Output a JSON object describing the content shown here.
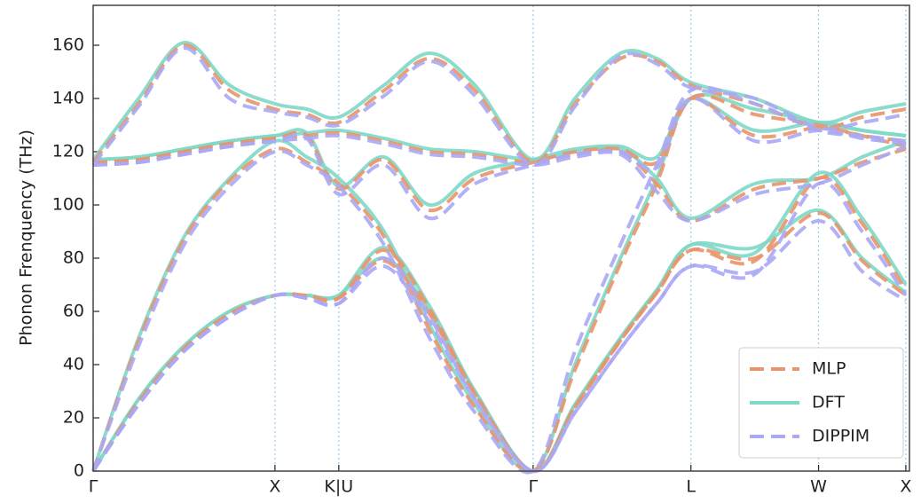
{
  "chart_data": {
    "type": "line",
    "ylabel": "Phonon Frenquency (THz)",
    "x": [
      0,
      0.25,
      0.5,
      0.75,
      1.0,
      1.175,
      1.351,
      1.6,
      1.85,
      2.1,
      2.42,
      2.65,
      2.9,
      3.1,
      3.288,
      3.64,
      3.99,
      4.23,
      4.47
    ],
    "xlim": [
      0,
      4.49
    ],
    "xticks": [
      {
        "value": 0,
        "label": "Γ"
      },
      {
        "value": 1.0,
        "label": "X"
      },
      {
        "value": 1.351,
        "label": "K|U"
      },
      {
        "value": 2.42,
        "label": "Γ"
      },
      {
        "value": 3.288,
        "label": "L"
      },
      {
        "value": 3.99,
        "label": "W"
      },
      {
        "value": 4.47,
        "label": "X"
      }
    ],
    "ylim": [
      0,
      175
    ],
    "yticks": [
      0,
      20,
      40,
      60,
      80,
      100,
      120,
      140,
      160
    ],
    "legend": "lower right",
    "series": [
      {
        "name": "MLP",
        "color": "#e8956a",
        "dash": true,
        "branches": [
          [
            0,
            26,
            46,
            59,
            66,
            66,
            65,
            79,
            59,
            29,
            0,
            24,
            49,
            67,
            83,
            80,
            97,
            79,
            66
          ],
          [
            0,
            26,
            46,
            59,
            66,
            66,
            65,
            83,
            61,
            29,
            0,
            24,
            49,
            67,
            83,
            79,
            110,
            93,
            68
          ],
          [
            0,
            49,
            87,
            109,
            121,
            116,
            108,
            88,
            53,
            24,
            0,
            38,
            78,
            108,
            140,
            134,
            130,
            126,
            122
          ],
          [
            116,
            117,
            120,
            123,
            125,
            126,
            127,
            124,
            120,
            119,
            116,
            119,
            120,
            108,
            94,
            106,
            110,
            116,
            121
          ],
          [
            116,
            138,
            160,
            143,
            136,
            134,
            131,
            143,
            155,
            143,
            116,
            138,
            155,
            154,
            145,
            138,
            129,
            133,
            136
          ],
          [
            116,
            117,
            120,
            123,
            125,
            126,
            106,
            117,
            98,
            110,
            116,
            120,
            121,
            116,
            140,
            126,
            129,
            126,
            124
          ]
        ]
      },
      {
        "name": "DFT",
        "color": "#7fd8c8",
        "dash": false,
        "branches": [
          [
            0,
            27,
            47,
            60,
            66,
            66,
            66,
            80,
            60,
            30,
            0,
            25,
            50,
            68,
            85,
            84,
            98,
            80,
            67
          ],
          [
            0,
            27,
            47,
            60,
            66,
            66,
            66,
            84,
            62,
            30,
            0,
            25,
            50,
            68,
            85,
            82,
            112,
            95,
            70
          ],
          [
            0,
            50,
            88,
            110,
            124,
            118,
            110,
            90,
            55,
            25,
            0,
            40,
            80,
            110,
            140,
            136,
            131,
            128,
            126
          ],
          [
            117,
            118,
            121,
            124,
            126,
            127,
            128,
            125,
            121,
            120,
            117,
            120,
            121,
            110,
            95,
            108,
            110,
            118,
            124
          ],
          [
            117,
            140,
            161,
            145,
            138,
            136,
            133,
            145,
            157,
            145,
            117,
            140,
            157,
            155,
            146,
            140,
            131,
            135,
            138
          ],
          [
            117,
            118,
            121,
            124,
            126,
            127,
            107,
            118,
            100,
            112,
            117,
            121,
            122,
            118,
            140,
            128,
            131,
            128,
            126
          ]
        ]
      },
      {
        "name": "DIPPIM",
        "color": "#aaa8f5",
        "dash": true,
        "branches": [
          [
            0,
            25,
            45,
            58,
            66,
            65,
            63,
            77,
            56,
            27,
            0,
            22,
            46,
            63,
            77,
            75,
            94,
            75,
            64
          ],
          [
            0,
            25,
            45,
            58,
            66,
            65,
            63,
            80,
            58,
            27,
            0,
            22,
            46,
            63,
            77,
            74,
            108,
            90,
            66
          ],
          [
            0,
            47,
            85,
            107,
            120,
            115,
            107,
            85,
            50,
            22,
            0,
            45,
            85,
            115,
            143,
            138,
            128,
            126,
            124
          ],
          [
            115,
            116,
            119,
            122,
            124,
            125,
            126,
            123,
            119,
            118,
            115,
            118,
            119,
            105,
            94,
            104,
            108,
            115,
            122
          ],
          [
            115,
            137,
            159,
            140,
            135,
            133,
            130,
            141,
            154,
            141,
            115,
            137,
            156,
            153,
            144,
            140,
            129,
            131,
            134
          ],
          [
            115,
            116,
            119,
            122,
            124,
            125,
            104,
            115,
            95,
            108,
            115,
            119,
            120,
            114,
            140,
            124,
            128,
            125,
            123
          ]
        ]
      }
    ]
  }
}
